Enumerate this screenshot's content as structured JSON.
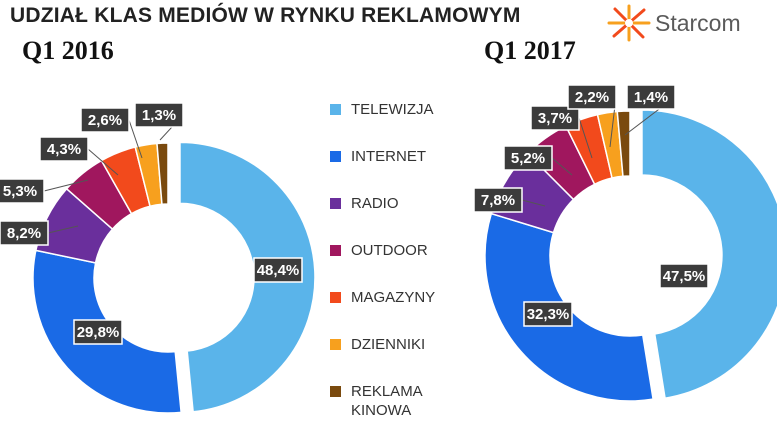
{
  "header": {
    "title": "UDZIAŁ KLAS MEDIÓW  W RYNKU REKLAMOWYM",
    "logo_text": "Starcom"
  },
  "colors": {
    "TELEWIZJA": "#5ab4ea",
    "INTERNET": "#1a6ae6",
    "RADIO": "#6a2f9c",
    "OUTDOOR": "#a0175e",
    "MAGAZYNY": "#f24a1c",
    "DZIENNIKI": "#f7a01e",
    "REKLAMA KINOWA": "#7a4a0e"
  },
  "chart_data": [
    {
      "type": "pie",
      "subtitle": "Q1 2016",
      "categories": [
        "TELEWIZJA",
        "INTERNET",
        "RADIO",
        "OUTDOOR",
        "MAGAZYNY",
        "DZIENNIKI",
        "REKLAMA KINOWA"
      ],
      "values": [
        48.4,
        29.8,
        8.2,
        5.3,
        4.3,
        2.6,
        1.3
      ],
      "value_labels": [
        "48,4%",
        "29,8%",
        "8,2%",
        "5,3%",
        "4,3%",
        "2,6%",
        "1,3%"
      ],
      "legend": "center"
    },
    {
      "type": "pie",
      "subtitle": "Q1 2017",
      "categories": [
        "TELEWIZJA",
        "INTERNET",
        "RADIO",
        "OUTDOOR",
        "MAGAZYNY",
        "DZIENNIKI",
        "REKLAMA KINOWA"
      ],
      "values": [
        47.5,
        32.3,
        7.8,
        5.2,
        3.7,
        2.2,
        1.4
      ],
      "value_labels": [
        "47,5%",
        "32,3%",
        "7,8%",
        "5,2%",
        "3,7%",
        "2,2%",
        "1,4%"
      ],
      "legend": "center"
    }
  ],
  "legend": {
    "items": [
      {
        "label": "TELEWIZJA",
        "color": "#5ab4ea"
      },
      {
        "label": "INTERNET",
        "color": "#1a6ae6"
      },
      {
        "label": "RADIO",
        "color": "#6a2f9c"
      },
      {
        "label": "OUTDOOR",
        "color": "#a0175e"
      },
      {
        "label": "MAGAZYNY",
        "color": "#f24a1c"
      },
      {
        "label": "DZIENNIKI",
        "color": "#f7a01e"
      },
      {
        "label": "REKLAMA KINOWA",
        "color": "#7a4a0e"
      }
    ]
  }
}
